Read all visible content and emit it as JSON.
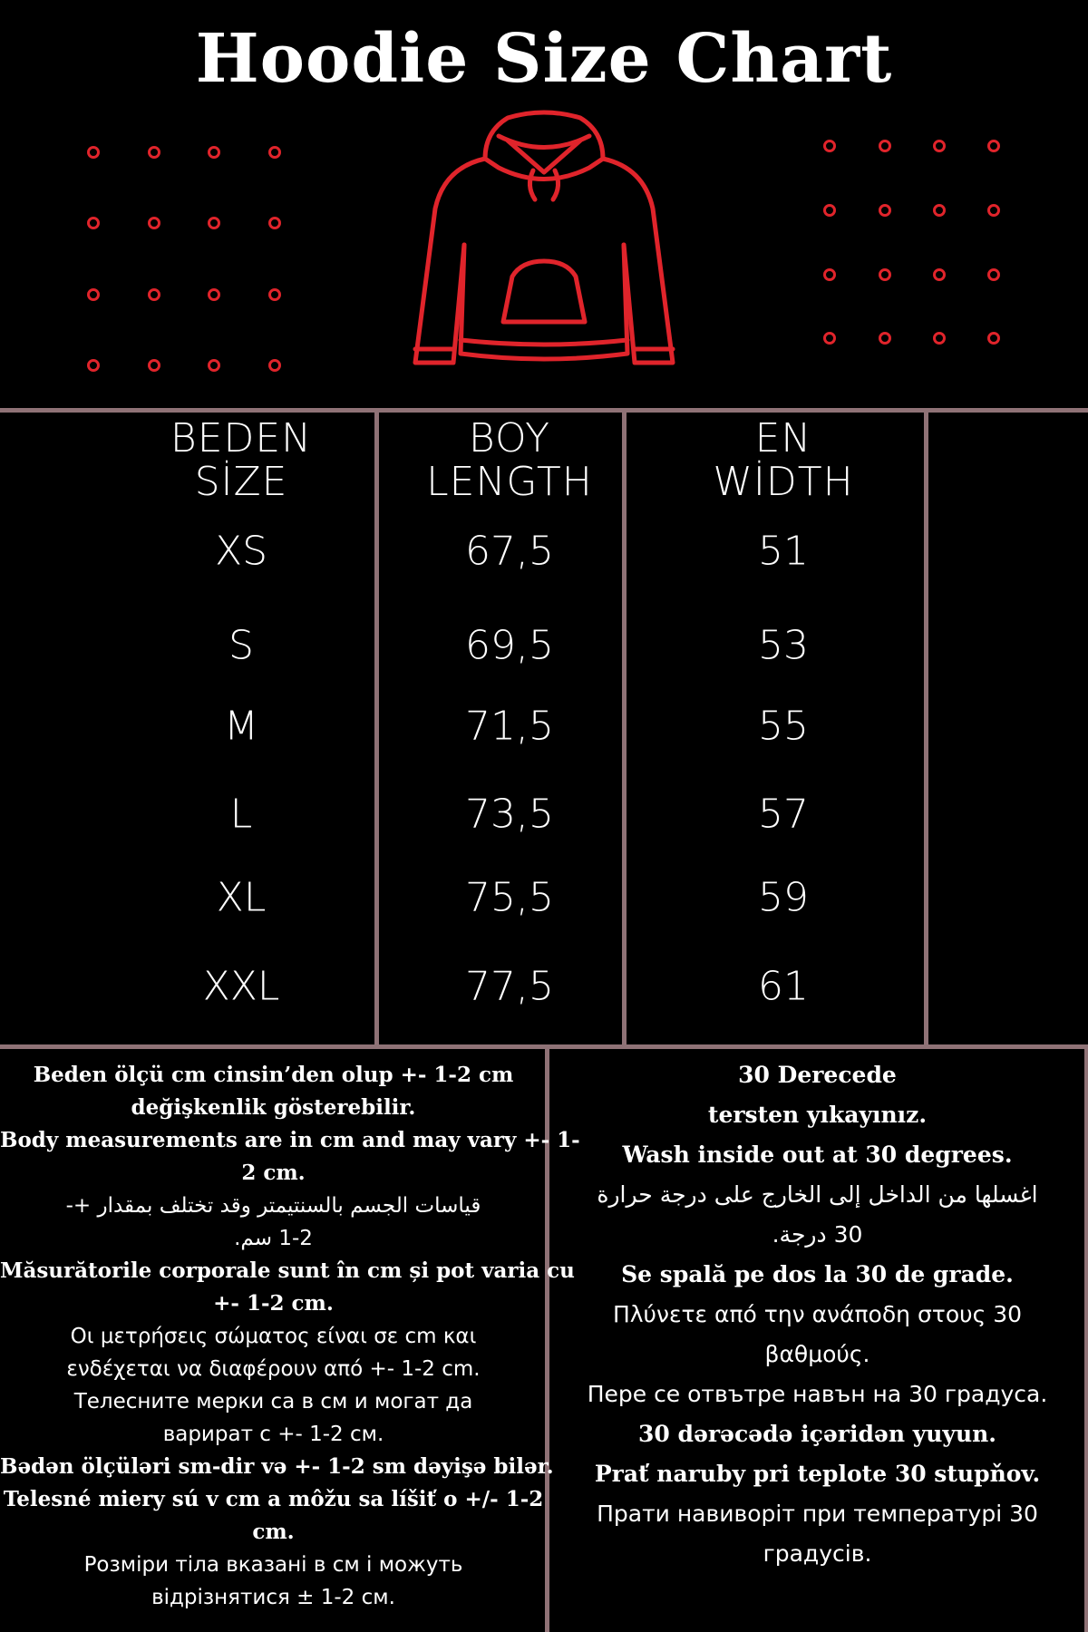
{
  "title": "Hoodie Size Chart",
  "accent_color": "#e0242b",
  "divider_color": "#8f7276",
  "headers": [
    {
      "line1": "BEDEN",
      "line2": "SİZE"
    },
    {
      "line1": "BOY",
      "line2": "LENGTH"
    },
    {
      "line1": "EN",
      "line2": "WİDTH"
    }
  ],
  "rows": [
    {
      "size": "XS",
      "length": "67,5",
      "width": "51"
    },
    {
      "size": "S",
      "length": "69,5",
      "width": "53"
    },
    {
      "size": "M",
      "length": "71,5",
      "width": "55"
    },
    {
      "size": "L",
      "length": "73,5",
      "width": "57"
    },
    {
      "size": "XL",
      "length": "75,5",
      "width": "59"
    },
    {
      "size": "XXL",
      "length": "77,5",
      "width": "61"
    }
  ],
  "notes_left": [
    {
      "text": "Beden ölçü cm cinsin’den olup +- 1-2 cm",
      "style": "serif"
    },
    {
      "text": "değişkenlik gösterebilir.",
      "style": "serif"
    },
    {
      "text": "Body measurements are in cm and may vary +- 1-",
      "style": "serif"
    },
    {
      "text": "2 cm.",
      "style": "serif"
    },
    {
      "text": "قياسات الجسم بالسنتيمتر وقد تختلف بمقدار +-",
      "style": "sans"
    },
    {
      "text": "1-2 سم.",
      "style": "sans"
    },
    {
      "text": "Măsurătorile corporale sunt în cm și pot varia cu",
      "style": "serif"
    },
    {
      "text": "+- 1-2 cm.",
      "style": "serif"
    },
    {
      "text": "Οι μετρήσεις σώματος είναι σε cm και",
      "style": "sans"
    },
    {
      "text": "ενδέχεται να διαφέρουν από +- 1-2 cm.",
      "style": "sans"
    },
    {
      "text": "Телесните мерки са в см и могат да",
      "style": "sans"
    },
    {
      "text": "варират с +- 1-2 см.",
      "style": "sans"
    },
    {
      "text": "Bədən ölçüləri sm-dir və +- 1-2 sm dəyişə bilər.",
      "style": "serif"
    },
    {
      "text": "Telesné miery sú v cm a môžu sa líšiť o +/- 1-2",
      "style": "serif"
    },
    {
      "text": "cm.",
      "style": "serif"
    },
    {
      "text": "Розміри тіла вказані в см і можуть",
      "style": "sans"
    },
    {
      "text": "відрізнятися ± 1-2 см.",
      "style": "sans"
    }
  ],
  "notes_right": [
    {
      "text": "30 Derecede",
      "style": "serif"
    },
    {
      "text": "tersten yıkayınız.",
      "style": "serif"
    },
    {
      "text": "Wash inside out at 30 degrees.",
      "style": "serif"
    },
    {
      "text": "اغسلها من الداخل إلى الخارج على درجة حرارة",
      "style": "sans"
    },
    {
      "text": "30 درجة.",
      "style": "sans"
    },
    {
      "text": "Se spală pe dos la 30 de grade.",
      "style": "serif"
    },
    {
      "text": "Πλύνετε από την ανάποδη στους 30",
      "style": "sans"
    },
    {
      "text": "βαθμούς.",
      "style": "sans"
    },
    {
      "text": "Пере се отвътре навън на 30 градуса.",
      "style": "sans"
    },
    {
      "text": "30 dərəcədə içəridən yuyun.",
      "style": "serif"
    },
    {
      "text": "Prať naruby pri teplote 30 stupňov.",
      "style": "serif"
    },
    {
      "text": "Прати навиворіт при температурі 30",
      "style": "sans"
    },
    {
      "text": "градусів.",
      "style": "sans"
    }
  ]
}
